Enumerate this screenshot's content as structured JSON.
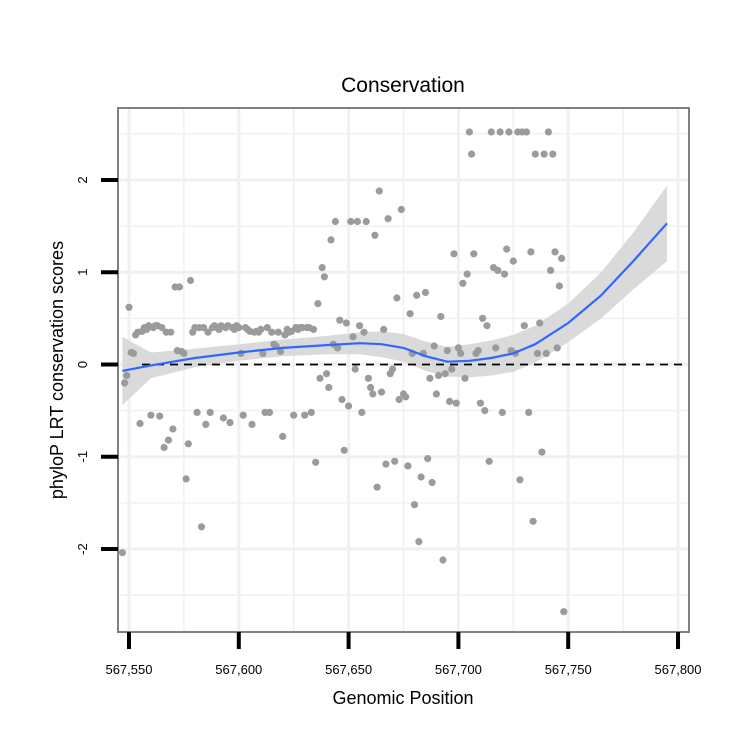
{
  "chart_data": {
    "type": "scatter",
    "title": "Conservation",
    "xlabel": "Genomic Position",
    "ylabel": "phyloP LRT conservation scores",
    "xlim": [
      567545,
      567805
    ],
    "ylim": [
      -2.9,
      2.78
    ],
    "x_ticks": [
      567550,
      567600,
      567650,
      567700,
      567750,
      567800
    ],
    "x_tick_labels": [
      "567,550",
      "567,600",
      "567,650",
      "567,700",
      "567,750",
      "567,800"
    ],
    "y_ticks": [
      -2,
      -1,
      0,
      1,
      2
    ],
    "y_tick_labels": [
      "-2",
      "-1",
      "0",
      "1",
      "2"
    ],
    "grid": true,
    "reference_line": {
      "y": 0,
      "style": "dashed"
    },
    "colors": {
      "points": "#9b9b9b",
      "smooth": "#3366ff",
      "ribbon": "#d6d6d6",
      "grid": "#f0f0f0",
      "border": "#808080"
    },
    "points": [
      [
        567547,
        -2.04
      ],
      [
        567548,
        -0.2
      ],
      [
        567549,
        -0.12
      ],
      [
        567550,
        0.62
      ],
      [
        567551,
        0.13
      ],
      [
        567552,
        0.12
      ],
      [
        567553,
        0.32
      ],
      [
        567554,
        0.35
      ],
      [
        567555,
        -0.64
      ],
      [
        567556,
        0.36
      ],
      [
        567557,
        0.4
      ],
      [
        567558,
        0.38
      ],
      [
        567559,
        0.42
      ],
      [
        567560,
        -0.55
      ],
      [
        567561,
        0.4
      ],
      [
        567562,
        0.42
      ],
      [
        567563,
        0.42
      ],
      [
        567564,
        -0.56
      ],
      [
        567565,
        0.4
      ],
      [
        567566,
        -0.9
      ],
      [
        567567,
        0.35
      ],
      [
        567568,
        -0.82
      ],
      [
        567569,
        0.35
      ],
      [
        567570,
        -0.7
      ],
      [
        567571,
        0.84
      ],
      [
        567572,
        0.15
      ],
      [
        567573,
        0.84
      ],
      [
        567574,
        0.14
      ],
      [
        567575,
        0.12
      ],
      [
        567576,
        -1.24
      ],
      [
        567577,
        -0.86
      ],
      [
        567578,
        0.91
      ],
      [
        567579,
        0.35
      ],
      [
        567580,
        0.4
      ],
      [
        567581,
        -0.52
      ],
      [
        567582,
        0.4
      ],
      [
        567583,
        -1.76
      ],
      [
        567584,
        0.4
      ],
      [
        567585,
        -0.65
      ],
      [
        567586,
        0.35
      ],
      [
        567587,
        -0.52
      ],
      [
        567588,
        0.4
      ],
      [
        567589,
        0.42
      ],
      [
        567590,
        0.4
      ],
      [
        567591,
        0.38
      ],
      [
        567592,
        0.42
      ],
      [
        567593,
        -0.58
      ],
      [
        567594,
        0.4
      ],
      [
        567595,
        0.42
      ],
      [
        567596,
        -0.63
      ],
      [
        567597,
        0.4
      ],
      [
        567598,
        0.38
      ],
      [
        567599,
        0.42
      ],
      [
        567600,
        0.4
      ],
      [
        567601,
        0.12
      ],
      [
        567602,
        -0.55
      ],
      [
        567603,
        0.4
      ],
      [
        567604,
        0.38
      ],
      [
        567605,
        0.36
      ],
      [
        567606,
        -0.65
      ],
      [
        567607,
        0.35
      ],
      [
        567608,
        0.36
      ],
      [
        567609,
        0.35
      ],
      [
        567610,
        0.38
      ],
      [
        567611,
        0.12
      ],
      [
        567612,
        -0.52
      ],
      [
        567613,
        0.4
      ],
      [
        567614,
        -0.52
      ],
      [
        567615,
        0.35
      ],
      [
        567616,
        0.22
      ],
      [
        567617,
        0.2
      ],
      [
        567618,
        0.35
      ],
      [
        567619,
        0.14
      ],
      [
        567620,
        -0.78
      ],
      [
        567621,
        0.32
      ],
      [
        567622,
        0.38
      ],
      [
        567623,
        0.35
      ],
      [
        567624,
        0.36
      ],
      [
        567625,
        -0.55
      ],
      [
        567626,
        0.4
      ],
      [
        567627,
        0.38
      ],
      [
        567628,
        0.4
      ],
      [
        567629,
        0.4
      ],
      [
        567630,
        -0.55
      ],
      [
        567631,
        0.4
      ],
      [
        567632,
        0.4
      ],
      [
        567633,
        -0.52
      ],
      [
        567634,
        0.38
      ],
      [
        567635,
        -1.06
      ],
      [
        567636,
        0.66
      ],
      [
        567637,
        -0.15
      ],
      [
        567638,
        1.05
      ],
      [
        567639,
        0.95
      ],
      [
        567640,
        -0.1
      ],
      [
        567641,
        -0.25
      ],
      [
        567642,
        1.35
      ],
      [
        567643,
        0.22
      ],
      [
        567644,
        1.55
      ],
      [
        567645,
        0.18
      ],
      [
        567646,
        0.48
      ],
      [
        567647,
        -0.38
      ],
      [
        567648,
        -0.93
      ],
      [
        567649,
        0.45
      ],
      [
        567650,
        -0.45
      ],
      [
        567651,
        1.55
      ],
      [
        567652,
        0.3
      ],
      [
        567653,
        -0.05
      ],
      [
        567654,
        1.55
      ],
      [
        567655,
        0.42
      ],
      [
        567656,
        -0.52
      ],
      [
        567657,
        0.35
      ],
      [
        567658,
        1.55
      ],
      [
        567659,
        -0.15
      ],
      [
        567660,
        -0.25
      ],
      [
        567661,
        -0.32
      ],
      [
        567662,
        1.4
      ],
      [
        567663,
        -1.33
      ],
      [
        567664,
        1.88
      ],
      [
        567665,
        -0.3
      ],
      [
        567666,
        0.38
      ],
      [
        567667,
        -1.08
      ],
      [
        567668,
        1.58
      ],
      [
        567669,
        -0.1
      ],
      [
        567670,
        -0.05
      ],
      [
        567671,
        -1.05
      ],
      [
        567672,
        0.72
      ],
      [
        567673,
        -0.38
      ],
      [
        567674,
        1.68
      ],
      [
        567675,
        -0.32
      ],
      [
        567676,
        -0.35
      ],
      [
        567677,
        -1.1
      ],
      [
        567678,
        0.55
      ],
      [
        567679,
        0.12
      ],
      [
        567680,
        -1.52
      ],
      [
        567681,
        0.75
      ],
      [
        567682,
        -1.92
      ],
      [
        567683,
        -1.22
      ],
      [
        567684,
        0.12
      ],
      [
        567685,
        0.78
      ],
      [
        567686,
        -1.02
      ],
      [
        567687,
        -0.15
      ],
      [
        567688,
        -1.28
      ],
      [
        567689,
        0.2
      ],
      [
        567690,
        -0.32
      ],
      [
        567691,
        -0.12
      ],
      [
        567692,
        0.52
      ],
      [
        567693,
        -2.12
      ],
      [
        567694,
        -0.1
      ],
      [
        567695,
        0.15
      ],
      [
        567696,
        -0.4
      ],
      [
        567697,
        -0.05
      ],
      [
        567698,
        1.2
      ],
      [
        567699,
        -0.42
      ],
      [
        567700,
        0.18
      ],
      [
        567701,
        0.12
      ],
      [
        567702,
        0.88
      ],
      [
        567703,
        -0.15
      ],
      [
        567704,
        0.98
      ],
      [
        567705,
        2.52
      ],
      [
        567706,
        2.28
      ],
      [
        567707,
        1.2
      ],
      [
        567708,
        0.12
      ],
      [
        567709,
        0.15
      ],
      [
        567710,
        -0.42
      ],
      [
        567711,
        0.5
      ],
      [
        567712,
        -0.5
      ],
      [
        567713,
        0.42
      ],
      [
        567714,
        -1.05
      ],
      [
        567715,
        2.52
      ],
      [
        567716,
        1.05
      ],
      [
        567717,
        0.18
      ],
      [
        567718,
        1.02
      ],
      [
        567719,
        2.52
      ],
      [
        567720,
        -0.52
      ],
      [
        567721,
        0.98
      ],
      [
        567722,
        1.25
      ],
      [
        567723,
        2.52
      ],
      [
        567724,
        0.15
      ],
      [
        567725,
        1.12
      ],
      [
        567726,
        0.12
      ],
      [
        567727,
        2.52
      ],
      [
        567728,
        -1.25
      ],
      [
        567729,
        2.52
      ],
      [
        567730,
        0.42
      ],
      [
        567731,
        2.52
      ],
      [
        567732,
        -0.52
      ],
      [
        567733,
        1.22
      ],
      [
        567734,
        -1.7
      ],
      [
        567735,
        2.28
      ],
      [
        567736,
        0.12
      ],
      [
        567737,
        0.45
      ],
      [
        567738,
        -0.95
      ],
      [
        567739,
        2.28
      ],
      [
        567740,
        0.12
      ],
      [
        567741,
        2.52
      ],
      [
        567742,
        1.02
      ],
      [
        567743,
        2.28
      ],
      [
        567744,
        1.22
      ],
      [
        567745,
        0.18
      ],
      [
        567746,
        0.85
      ],
      [
        567747,
        1.15
      ],
      [
        567748,
        -2.68
      ]
    ],
    "smooth": {
      "x": [
        567547,
        567560,
        567580,
        567600,
        567620,
        567640,
        567655,
        567665,
        567675,
        567685,
        567695,
        567705,
        567715,
        567725,
        567735,
        567750,
        567765,
        567780,
        567795
      ],
      "y": [
        -0.07,
        -0.01,
        0.07,
        0.13,
        0.18,
        0.21,
        0.23,
        0.22,
        0.18,
        0.09,
        0.03,
        0.04,
        0.07,
        0.12,
        0.22,
        0.45,
        0.75,
        1.13,
        1.53
      ],
      "lower": [
        -0.44,
        -0.15,
        -0.03,
        0.04,
        0.09,
        0.11,
        0.11,
        0.08,
        0.03,
        -0.07,
        -0.13,
        -0.14,
        -0.12,
        -0.08,
        0.02,
        0.24,
        0.5,
        0.82,
        1.12
      ],
      "upper": [
        0.3,
        0.13,
        0.17,
        0.22,
        0.27,
        0.31,
        0.35,
        0.36,
        0.33,
        0.25,
        0.19,
        0.22,
        0.26,
        0.32,
        0.42,
        0.66,
        1.0,
        1.44,
        1.94
      ]
    }
  }
}
